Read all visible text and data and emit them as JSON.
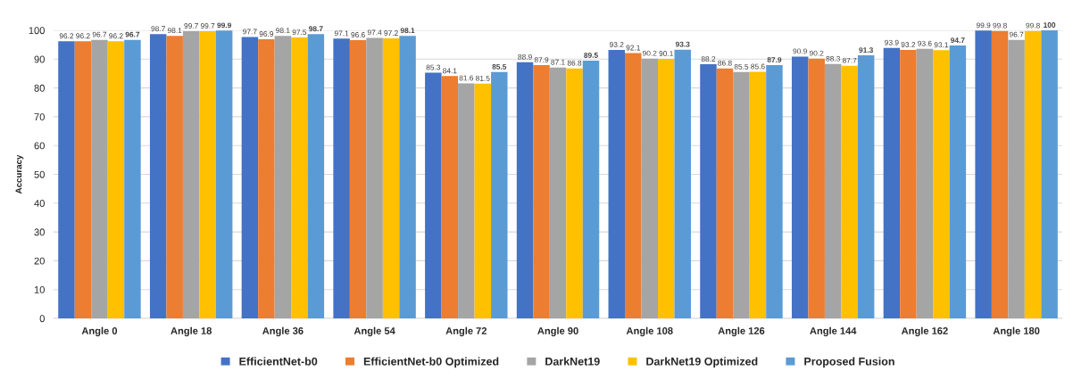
{
  "chart_data": {
    "type": "bar",
    "ylabel": "Accuracy",
    "categories": [
      "Angle 0",
      "Angle 18",
      "Angle 36",
      "Angle 54",
      "Angle 72",
      "Angle 90",
      "Angle 108",
      "Angle 126",
      "Angle 144",
      "Angle 162",
      "Angle 180"
    ],
    "series": [
      {
        "name": "EfficientNet-b0",
        "color": "#4472c4",
        "values": [
          96.2,
          98.7,
          97.7,
          97.1,
          85.3,
          88.9,
          93.2,
          88.2,
          90.9,
          93.9,
          99.9
        ]
      },
      {
        "name": "EfficientNet-b0 Optimized",
        "color": "#ed7d31",
        "values": [
          96.2,
          98.1,
          96.9,
          96.6,
          84.1,
          87.9,
          92.1,
          86.8,
          90.2,
          93.2,
          99.8
        ]
      },
      {
        "name": "DarkNet19",
        "color": "#a5a5a5",
        "values": [
          96.7,
          99.7,
          98.1,
          97.4,
          81.6,
          87.1,
          90.2,
          85.5,
          88.3,
          93.6,
          96.7
        ]
      },
      {
        "name": "DarkNet19 Optimized",
        "color": "#ffc000",
        "values": [
          96.2,
          99.7,
          97.5,
          97.2,
          81.5,
          86.8,
          90.1,
          85.6,
          87.7,
          93.1,
          99.8
        ]
      },
      {
        "name": "Proposed Fusion",
        "color": "#5b9bd5",
        "values": [
          96.7,
          99.9,
          98.7,
          98.1,
          85.5,
          89.5,
          93.3,
          87.9,
          91.3,
          94.7,
          100
        ]
      }
    ],
    "ylim": [
      0,
      100
    ],
    "yticks": [
      0,
      10,
      20,
      30,
      40,
      50,
      60,
      70,
      80,
      90,
      100
    ],
    "grid": "y",
    "legend": "bottom",
    "data_labels": true
  }
}
